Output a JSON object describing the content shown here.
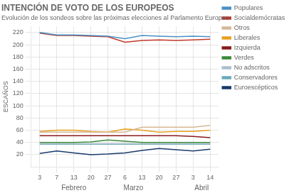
{
  "chart_data": {
    "type": "line",
    "title": "INTENCIÓN DE VOTO DE LOS EUROPEOS",
    "subtitle": "Evolución de los sondeos sobre las próximas elecciones al Parlamento Europeo",
    "ylabel": "ESCAÑOS",
    "categories": [
      "3",
      "7",
      "13",
      "20",
      "27",
      "6",
      "13",
      "20",
      "27",
      "3",
      "14"
    ],
    "series": [
      {
        "name": "Populares",
        "color": "#4a90c4",
        "values": [
          220,
          216,
          216,
          215,
          214,
          210,
          215,
          214,
          213,
          214,
          213
        ]
      },
      {
        "name": "Socialdemócratas",
        "color": "#c0392b",
        "values": [
          219,
          215,
          215,
          214,
          213,
          204,
          207,
          208,
          207,
          208,
          209
        ]
      },
      {
        "name": "Otros",
        "color": "#d4b896",
        "values": [
          57,
          57,
          57,
          57,
          57,
          57,
          65,
          65,
          65,
          65,
          68
        ]
      },
      {
        "name": "Liberales",
        "color": "#e8a020",
        "values": [
          58,
          60,
          60,
          58,
          57,
          62,
          60,
          57,
          58,
          58,
          60
        ]
      },
      {
        "name": "Izquierda",
        "color": "#8b1a1a",
        "values": [
          51,
          51,
          51,
          51,
          51,
          51,
          51,
          51,
          51,
          50,
          48
        ]
      },
      {
        "name": "Verdes",
        "color": "#3a8a3a",
        "values": [
          40,
          40,
          40,
          41,
          44,
          42,
          40,
          40,
          40,
          40,
          40
        ]
      },
      {
        "name": "No adscritos",
        "color": "#aabfcc",
        "values": [
          38,
          38,
          38,
          38,
          38,
          38,
          38,
          38,
          38,
          38,
          38
        ]
      },
      {
        "name": "Conservadores",
        "color": "#6aacb8",
        "values": [
          37,
          37,
          37,
          37,
          37,
          37,
          37,
          37,
          37,
          37,
          37
        ]
      },
      {
        "name": "Euroescépticos",
        "color": "#1a3a6b",
        "values": [
          22,
          26,
          23,
          20,
          21,
          23,
          27,
          30,
          28,
          26,
          29
        ]
      }
    ],
    "annotations": [
      {
        "text": "Febrero",
        "x": 2.0
      },
      {
        "text": "Marzo",
        "x": 5.5
      },
      {
        "text": "Abril",
        "x": 9.5
      }
    ],
    "ylim": [
      0,
      230
    ],
    "yticks": [
      20,
      40,
      60,
      80,
      100,
      120,
      140,
      160,
      180,
      200,
      220
    ],
    "grid": true,
    "legend": "right"
  }
}
